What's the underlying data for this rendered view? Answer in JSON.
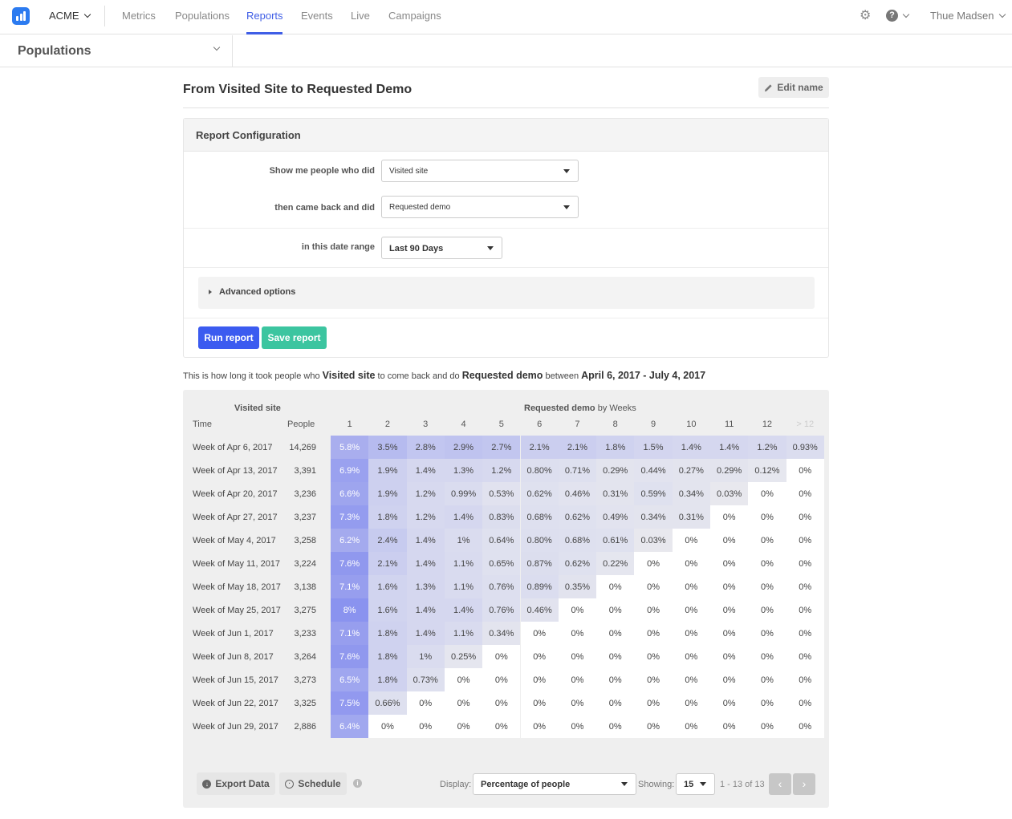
{
  "nav": {
    "brand": "ACME",
    "links": [
      "Metrics",
      "Populations",
      "Reports",
      "Events",
      "Live",
      "Campaigns"
    ],
    "active": "Reports",
    "user": "Thue Madsen",
    "icons": [
      "app-logo-icon",
      "gear-icon",
      "help-icon"
    ]
  },
  "subbar": {
    "title": "Populations"
  },
  "header": {
    "title": "From Visited Site to Requested Demo",
    "edit_label": "Edit name"
  },
  "config": {
    "heading": "Report Configuration",
    "show_label": "Show me people who did",
    "show_value": "Visited site",
    "then_label": "then came back and did",
    "then_value": "Requested demo",
    "range_label": "in this date range",
    "range_value": "Last 90 Days",
    "advanced_label": "Advanced options",
    "run_label": "Run report",
    "save_label": "Save report"
  },
  "summary": {
    "prefix": "This is how long it took people who",
    "event1": "Visited site",
    "mid": "to come back and do",
    "event2": "Requested demo",
    "between": "between",
    "range": "April 6, 2017 - July 4, 2017"
  },
  "table": {
    "group_left": "Visited site",
    "group_right_bold": "Requested demo",
    "group_right_rest": "by Weeks",
    "col_time": "Time",
    "col_people": "People",
    "week_cols": [
      "1",
      "2",
      "3",
      "4",
      "5",
      "6",
      "7",
      "8",
      "9",
      "10",
      "11",
      "12"
    ],
    "last_col": "> 12",
    "rows": [
      {
        "time": "Week of Apr 6, 2017",
        "people": "14,269",
        "values": [
          "5.8%",
          "3.5%",
          "2.8%",
          "2.9%",
          "2.7%",
          "2.1%",
          "2.1%",
          "1.8%",
          "1.5%",
          "1.4%",
          "1.4%",
          "1.2%",
          "0.93%"
        ]
      },
      {
        "time": "Week of Apr 13, 2017",
        "people": "3,391",
        "values": [
          "6.9%",
          "1.9%",
          "1.4%",
          "1.3%",
          "1.2%",
          "0.80%",
          "0.71%",
          "0.29%",
          "0.44%",
          "0.27%",
          "0.29%",
          "0.12%",
          "0%"
        ]
      },
      {
        "time": "Week of Apr 20, 2017",
        "people": "3,236",
        "values": [
          "6.6%",
          "1.9%",
          "1.2%",
          "0.99%",
          "0.53%",
          "0.62%",
          "0.46%",
          "0.31%",
          "0.59%",
          "0.34%",
          "0.03%",
          "0%",
          "0%"
        ]
      },
      {
        "time": "Week of Apr 27, 2017",
        "people": "3,237",
        "values": [
          "7.3%",
          "1.8%",
          "1.2%",
          "1.4%",
          "0.83%",
          "0.68%",
          "0.62%",
          "0.49%",
          "0.34%",
          "0.31%",
          "0%",
          "0%",
          "0%"
        ]
      },
      {
        "time": "Week of May 4, 2017",
        "people": "3,258",
        "values": [
          "6.2%",
          "2.4%",
          "1.4%",
          "1%",
          "0.64%",
          "0.80%",
          "0.68%",
          "0.61%",
          "0.03%",
          "0%",
          "0%",
          "0%",
          "0%"
        ]
      },
      {
        "time": "Week of May 11, 2017",
        "people": "3,224",
        "values": [
          "7.6%",
          "2.1%",
          "1.4%",
          "1.1%",
          "0.65%",
          "0.87%",
          "0.62%",
          "0.22%",
          "0%",
          "0%",
          "0%",
          "0%",
          "0%"
        ]
      },
      {
        "time": "Week of May 18, 2017",
        "people": "3,138",
        "values": [
          "7.1%",
          "1.6%",
          "1.3%",
          "1.1%",
          "0.76%",
          "0.89%",
          "0.35%",
          "0%",
          "0%",
          "0%",
          "0%",
          "0%",
          "0%"
        ]
      },
      {
        "time": "Week of May 25, 2017",
        "people": "3,275",
        "values": [
          "8%",
          "1.6%",
          "1.4%",
          "1.4%",
          "0.76%",
          "0.46%",
          "0%",
          "0%",
          "0%",
          "0%",
          "0%",
          "0%",
          "0%"
        ]
      },
      {
        "time": "Week of Jun 1, 2017",
        "people": "3,233",
        "values": [
          "7.1%",
          "1.8%",
          "1.4%",
          "1.1%",
          "0.34%",
          "0%",
          "0%",
          "0%",
          "0%",
          "0%",
          "0%",
          "0%",
          "0%"
        ]
      },
      {
        "time": "Week of Jun 8, 2017",
        "people": "3,264",
        "values": [
          "7.6%",
          "1.8%",
          "1%",
          "0.25%",
          "0%",
          "0%",
          "0%",
          "0%",
          "0%",
          "0%",
          "0%",
          "0%",
          "0%"
        ]
      },
      {
        "time": "Week of Jun 15, 2017",
        "people": "3,273",
        "values": [
          "6.5%",
          "1.8%",
          "0.73%",
          "0%",
          "0%",
          "0%",
          "0%",
          "0%",
          "0%",
          "0%",
          "0%",
          "0%",
          "0%"
        ]
      },
      {
        "time": "Week of Jun 22, 2017",
        "people": "3,325",
        "values": [
          "7.5%",
          "0.66%",
          "0%",
          "0%",
          "0%",
          "0%",
          "0%",
          "0%",
          "0%",
          "0%",
          "0%",
          "0%",
          "0%"
        ]
      },
      {
        "time": "Week of Jun 29, 2017",
        "people": "2,886",
        "values": [
          "6.4%",
          "0%",
          "0%",
          "0%",
          "0%",
          "0%",
          "0%",
          "0%",
          "0%",
          "0%",
          "0%",
          "0%",
          "0%"
        ]
      }
    ]
  },
  "footer": {
    "export_label": "Export Data",
    "schedule_label": "Schedule",
    "display_label": "Display:",
    "display_value": "Percentage of people",
    "showing_label": "Showing:",
    "showing_value": "15",
    "range_text": "1 - 13 of 13",
    "icons": [
      "download-icon",
      "clock-icon",
      "info-icon",
      "prev-page-icon",
      "next-page-icon"
    ]
  },
  "colors": {
    "accent": "#3f5ee6",
    "run": "#3b5bf0",
    "save": "#3cc5a0",
    "heat_max": "#7f88f0",
    "heat_min": "#f7f8ff"
  }
}
